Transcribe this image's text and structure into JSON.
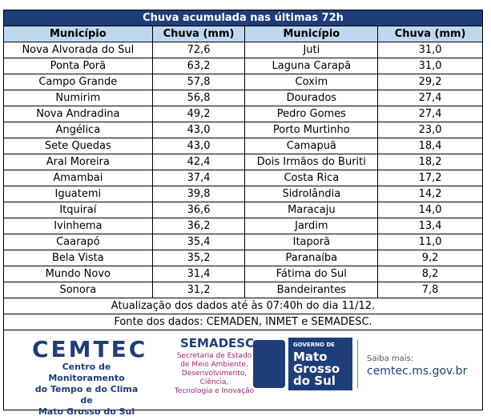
{
  "table": {
    "title": "Chuva acumulada nas últimas 72h",
    "header": [
      "Município",
      "Chuva (mm)",
      "Município",
      "Chuva (mm)"
    ],
    "rows": [
      [
        "Nova Alvorada do Sul",
        "72,6",
        "Juti",
        "31,0"
      ],
      [
        "Ponta Porã",
        "63,2",
        "Laguna Carapã",
        "31,0"
      ],
      [
        "Campo Grande",
        "57,8",
        "Coxim",
        "29,2"
      ],
      [
        "Numirim",
        "56,8",
        "Dourados",
        "27,4"
      ],
      [
        "Nova Andradina",
        "49,2",
        "Pedro Gomes",
        "27,4"
      ],
      [
        "Angélica",
        "43,0",
        "Porto Murtinho",
        "23,0"
      ],
      [
        "Sete Quedas",
        "43,0",
        "Camapuã",
        "18,4"
      ],
      [
        "Aral Moreira",
        "42,4",
        "Dois Irmãos do Buriti",
        "18,2"
      ],
      [
        "Amambai",
        "37,4",
        "Costa Rica",
        "17,2"
      ],
      [
        "Iguatemi",
        "39,8",
        "Sidrolândia",
        "14,2"
      ],
      [
        "Itquiraí",
        "36,6",
        "Maracaju",
        "14,0"
      ],
      [
        "Ivinhema",
        "36,2",
        "Jardim",
        "13,4"
      ],
      [
        "Caarapó",
        "35,4",
        "Itaporã",
        "11,0"
      ],
      [
        "Bela Vista",
        "35,2",
        "Paranaíba",
        "9,2"
      ],
      [
        "Mundo Novo",
        "31,4",
        "Fátima do Sul",
        "8,2"
      ],
      [
        "Sonora",
        "31,2",
        "Bandeirantes",
        "7,8"
      ]
    ],
    "notes": [
      "Atualização dos dados até às 07:40h do dia 11/12.",
      "Fonte dos dados:  CEMADEN, INMET e SEMADESC."
    ]
  },
  "footer": {
    "cemtec": {
      "name": "CEMTEC",
      "lines": [
        "Centro de Monitoramento",
        "do Tempo e do Clima de",
        "Mato Grosso do Sul"
      ]
    },
    "semadesc": {
      "name": "SEMADESC",
      "lines": [
        "Secretaria de Estado",
        "de Meio Ambiente,",
        "Desenvolvimento, Ciência,",
        "Tecnologia e Inovação"
      ]
    },
    "governo": {
      "lines": [
        "GOVERNO DE",
        "Mato",
        "Grosso",
        "do Sul"
      ]
    },
    "site": {
      "label": "Saiba mais:",
      "url": "cemtec.ms.gov.br"
    }
  }
}
